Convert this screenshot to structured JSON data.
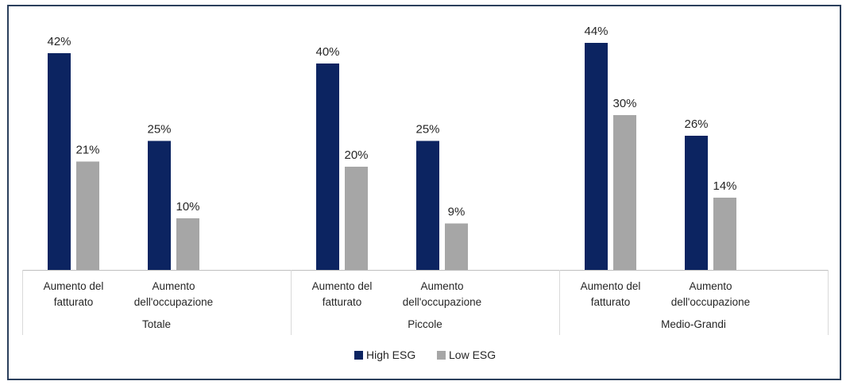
{
  "chart_data": {
    "type": "bar",
    "groups": [
      "Totale",
      "Piccole",
      "Medio-Grandi"
    ],
    "categories": [
      [
        "Aumento del",
        "fatturato"
      ],
      [
        "Aumento",
        "dell'occupazione"
      ]
    ],
    "series": [
      {
        "name": "High ESG",
        "color": "#0c2461",
        "values": [
          [
            42,
            25
          ],
          [
            40,
            25
          ],
          [
            44,
            26
          ]
        ]
      },
      {
        "name": "Low ESG",
        "color": "#a6a6a6",
        "values": [
          [
            21,
            10
          ],
          [
            20,
            9
          ],
          [
            30,
            14
          ]
        ]
      }
    ],
    "value_suffix": "%",
    "ylim": [
      0,
      50
    ],
    "legend_position": "bottom",
    "grid": false
  }
}
